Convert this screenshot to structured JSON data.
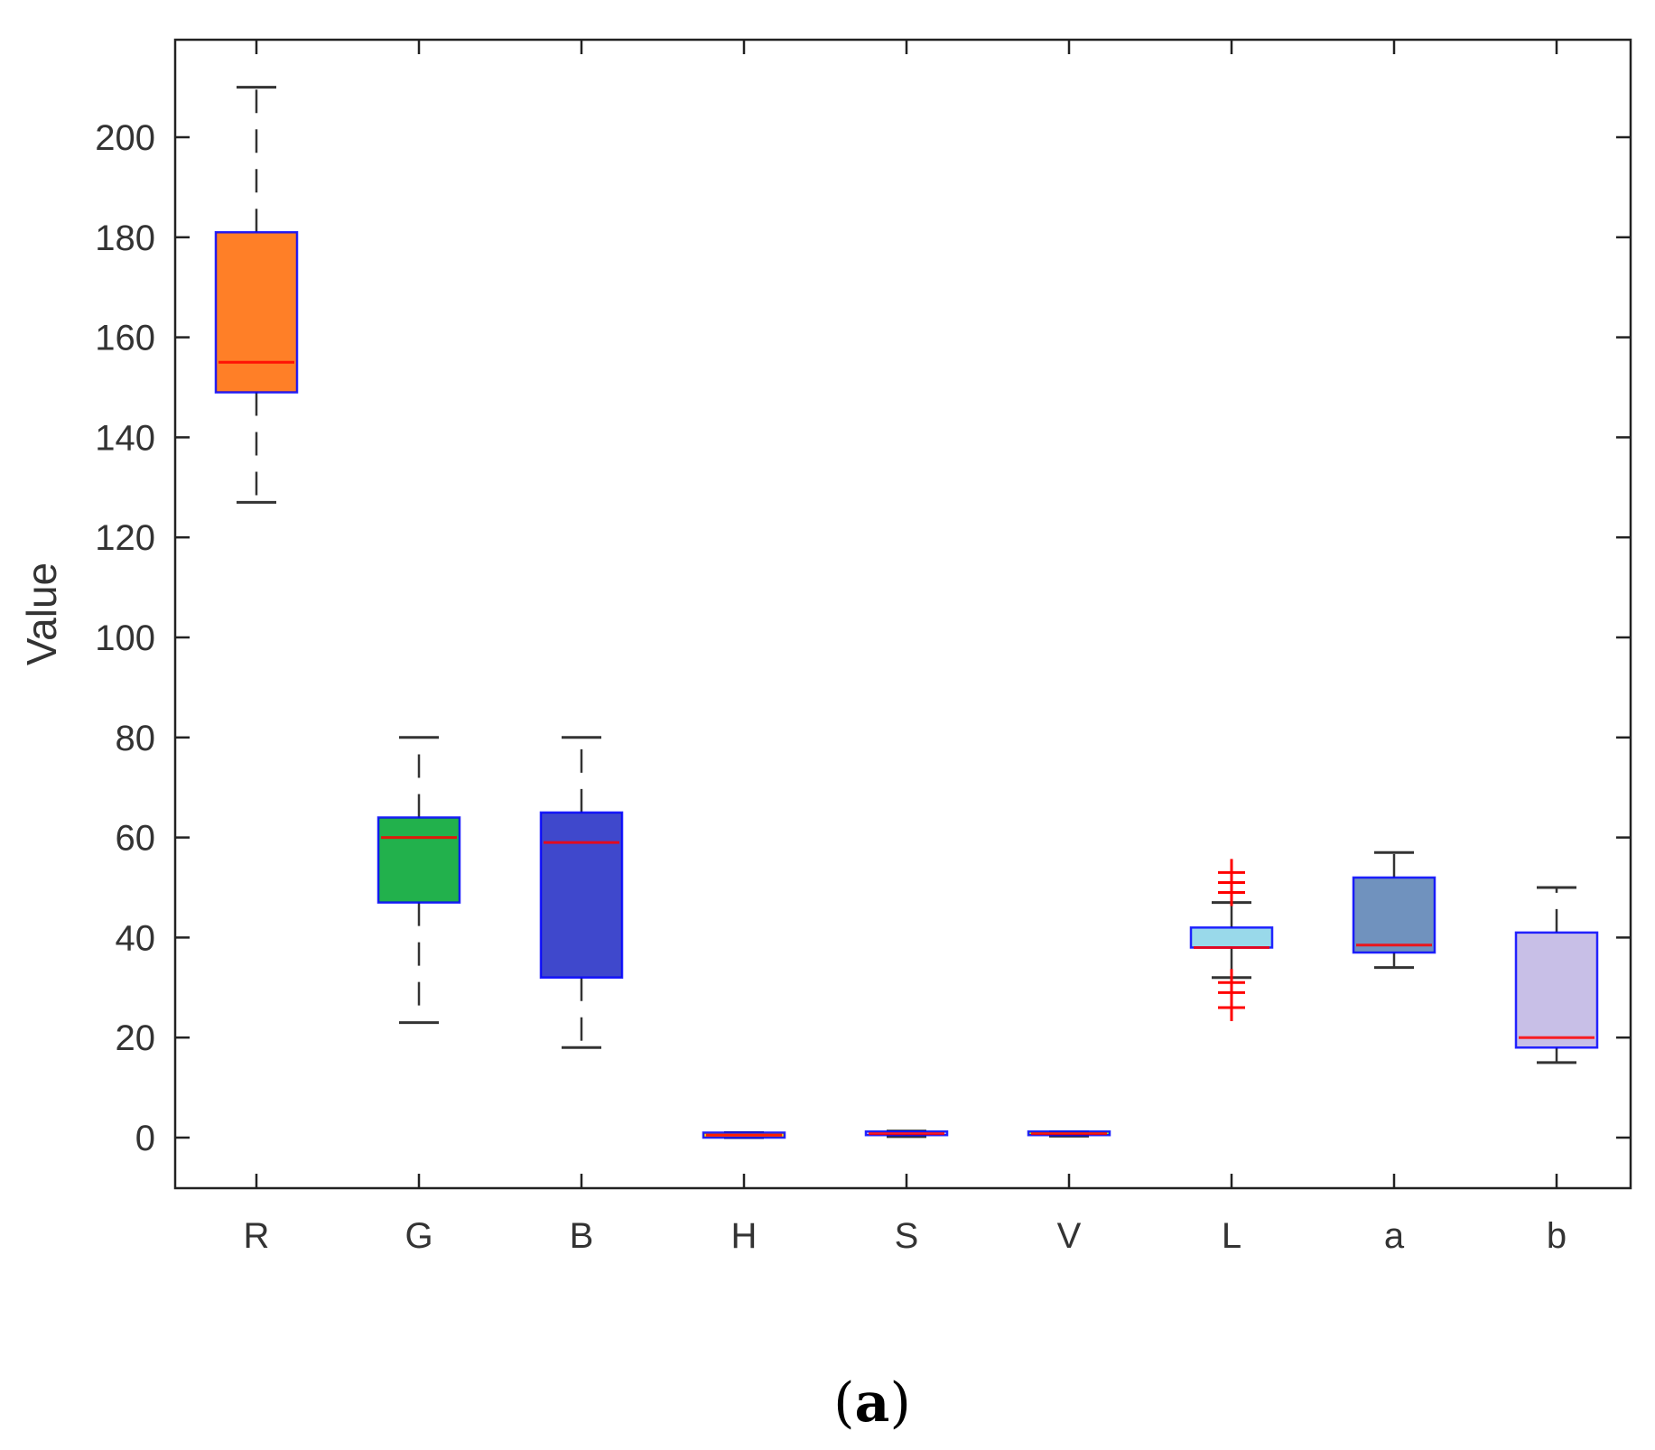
{
  "chart_data": {
    "type": "boxplot",
    "title": "",
    "xlabel": "",
    "ylabel": "Value",
    "ylim": [
      -10,
      220
    ],
    "yticks": [
      0,
      20,
      40,
      60,
      80,
      100,
      120,
      140,
      160,
      180,
      200
    ],
    "categories": [
      "R",
      "G",
      "B",
      "H",
      "S",
      "V",
      "L",
      "a",
      "b"
    ],
    "boxes": [
      {
        "label": "R",
        "whisker_low": 127,
        "q1": 149,
        "median": 155,
        "q3": 181,
        "whisker_high": 210,
        "fill": "#ff7f27",
        "outliers": []
      },
      {
        "label": "G",
        "whisker_low": 23,
        "q1": 47,
        "median": 60,
        "q3": 64,
        "whisker_high": 80,
        "fill": "#22b14c",
        "outliers": []
      },
      {
        "label": "B",
        "whisker_low": 18,
        "q1": 32,
        "median": 59,
        "q3": 65,
        "whisker_high": 80,
        "fill": "#3f48cc",
        "outliers": []
      },
      {
        "label": "H",
        "whisker_low": 0,
        "q1": 0,
        "median": 0.5,
        "q3": 1,
        "whisker_high": 1,
        "fill": "#ffc90e",
        "outliers": []
      },
      {
        "label": "S",
        "whisker_low": 0.2,
        "q1": 0.5,
        "median": 0.8,
        "q3": 1.2,
        "whisker_high": 1.3,
        "fill": "#c8bfe7",
        "outliers": []
      },
      {
        "label": "V",
        "whisker_low": 0.3,
        "q1": 0.5,
        "median": 0.8,
        "q3": 1.0,
        "whisker_high": 1.1,
        "fill": "#b5e61d",
        "outliers": []
      },
      {
        "label": "L",
        "whisker_low": 32,
        "q1": 38,
        "median": 38,
        "q3": 42,
        "whisker_high": 47,
        "fill": "#99d9ea",
        "outliers": [
          26,
          29,
          31,
          49,
          51,
          53
        ]
      },
      {
        "label": "a",
        "whisker_low": 34,
        "q1": 37,
        "median": 38.5,
        "q3": 52,
        "whisker_high": 57,
        "fill": "#7092be",
        "outliers": []
      },
      {
        "label": "b",
        "whisker_low": 15,
        "q1": 18,
        "median": 20,
        "q3": 41,
        "whisker_high": 50,
        "fill": "#c8bfe7",
        "outliers": []
      }
    ],
    "caption": {
      "open": "(",
      "letter": "a",
      "close": ")"
    },
    "colors": {
      "box_edge": "#0000ff",
      "median": "#ff0000",
      "whisker": "#333333",
      "outlier": "#ff0000",
      "axis": "#222222"
    }
  }
}
